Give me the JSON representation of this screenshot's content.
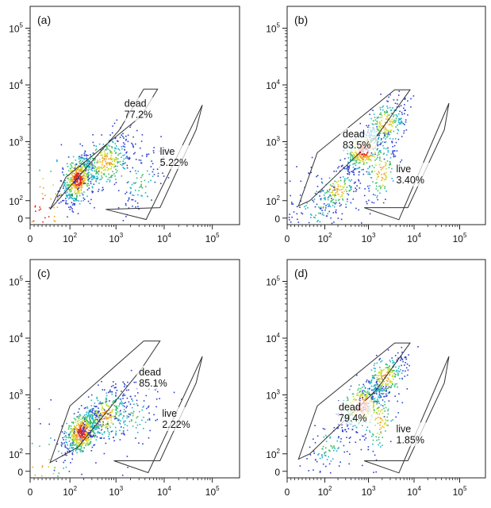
{
  "chart_data": [
    {
      "type": "scatter",
      "panel": "(a)",
      "title": "",
      "xlabel": "",
      "ylabel": "",
      "scale": "biexponential",
      "x_ticks": [
        "0",
        "10^2",
        "10^3",
        "10^4",
        "10^5"
      ],
      "y_ticks": [
        "0",
        "10^2",
        "10^3",
        "10^4",
        "10^5"
      ],
      "gates": [
        {
          "name": "dead",
          "percent": "77.2%",
          "polygon": [
            [
              50,
              50
            ],
            [
              90,
              250
            ],
            [
              3500,
              2700
            ],
            [
              8000,
              7800
            ],
            [
              4000,
              7800
            ],
            [
              1200,
              1600
            ]
          ]
        },
        {
          "name": "live",
          "percent": "5.22%",
          "polygon": [
            [
              600,
              50
            ],
            [
              4500,
              -50
            ],
            [
              75000,
              4200
            ],
            [
              55000,
              1600
            ],
            [
              9000,
              60
            ]
          ]
        }
      ],
      "populations": [
        {
          "x": 30,
          "y": 40,
          "sx": 0.5,
          "sy": 0.5,
          "n": 90,
          "density": "high"
        },
        {
          "x": 150,
          "y": 230,
          "sx": 0.18,
          "sy": 0.22,
          "n": 520,
          "density": "high"
        },
        {
          "x": 600,
          "y": 450,
          "sx": 0.3,
          "sy": 0.25,
          "n": 330,
          "density": "medium"
        },
        {
          "x": 3500,
          "y": 200,
          "sx": 0.28,
          "sy": 0.3,
          "n": 110,
          "density": "low"
        }
      ]
    },
    {
      "type": "scatter",
      "panel": "(b)",
      "title": "",
      "xlabel": "",
      "ylabel": "",
      "scale": "biexponential",
      "x_ticks": [
        "0",
        "10^2",
        "10^3",
        "10^4",
        "10^5"
      ],
      "y_ticks": [
        "0",
        "10^2",
        "10^3",
        "10^4",
        "10^5"
      ],
      "gates": [
        {
          "name": "dead",
          "percent": "83.5%",
          "polygon": [
            [
              30,
              70
            ],
            [
              60,
              100
            ],
            [
              1500,
              1200
            ],
            [
              9000,
              7600
            ],
            [
              4000,
              7600
            ],
            [
              80,
              650
            ]
          ]
        },
        {
          "name": "live",
          "percent": "3.40%",
          "polygon": [
            [
              800,
              60
            ],
            [
              5000,
              -60
            ],
            [
              70000,
              4500
            ],
            [
              55000,
              1600
            ],
            [
              8000,
              60
            ]
          ]
        }
      ],
      "populations": [
        {
          "x": 80,
          "y": 60,
          "sx": 0.35,
          "sy": 0.3,
          "n": 120,
          "density": "low"
        },
        {
          "x": 200,
          "y": 150,
          "sx": 0.25,
          "sy": 0.2,
          "n": 160,
          "density": "medium"
        },
        {
          "x": 800,
          "y": 700,
          "sx": 0.25,
          "sy": 0.18,
          "n": 320,
          "density": "high"
        },
        {
          "x": 2500,
          "y": 2000,
          "sx": 0.25,
          "sy": 0.2,
          "n": 260,
          "density": "medium"
        },
        {
          "x": 2000,
          "y": 300,
          "sx": 0.2,
          "sy": 0.3,
          "n": 130,
          "density": "medium"
        }
      ]
    },
    {
      "type": "scatter",
      "panel": "(c)",
      "title": "",
      "xlabel": "",
      "ylabel": "",
      "scale": "biexponential",
      "x_ticks": [
        "0",
        "10^2",
        "10^3",
        "10^4",
        "10^5"
      ],
      "y_ticks": [
        "0",
        "10^2",
        "10^3",
        "10^4",
        "10^5"
      ],
      "gates": [
        {
          "name": "dead",
          "percent": "85.1%",
          "polygon": [
            [
              50,
              50
            ],
            [
              150,
              130
            ],
            [
              3500,
              2700
            ],
            [
              9000,
              8200
            ],
            [
              4000,
              8200
            ],
            [
              100,
              650
            ]
          ]
        },
        {
          "name": "live",
          "percent": "2.22%",
          "polygon": [
            [
              900,
              60
            ],
            [
              5000,
              -50
            ],
            [
              75000,
              4500
            ],
            [
              55000,
              1600
            ],
            [
              9000,
              60
            ]
          ]
        }
      ],
      "populations": [
        {
          "x": 25,
          "y": 20,
          "sx": 0.4,
          "sy": 0.4,
          "n": 60,
          "density": "medium"
        },
        {
          "x": 180,
          "y": 230,
          "sx": 0.2,
          "sy": 0.2,
          "n": 560,
          "density": "high"
        },
        {
          "x": 600,
          "y": 450,
          "sx": 0.28,
          "sy": 0.25,
          "n": 340,
          "density": "medium"
        },
        {
          "x": 2500,
          "y": 400,
          "sx": 0.3,
          "sy": 0.3,
          "n": 90,
          "density": "low"
        }
      ]
    },
    {
      "type": "scatter",
      "panel": "(d)",
      "title": "",
      "xlabel": "",
      "ylabel": "",
      "scale": "biexponential",
      "x_ticks": [
        "0",
        "10^2",
        "10^3",
        "10^4",
        "10^5"
      ],
      "y_ticks": [
        "0",
        "10^2",
        "10^3",
        "10^4",
        "10^5"
      ],
      "gates": [
        {
          "name": "dead",
          "percent": "79.4%",
          "polygon": [
            [
              30,
              70
            ],
            [
              60,
              100
            ],
            [
              1500,
              1200
            ],
            [
              9000,
              7600
            ],
            [
              4000,
              7600
            ],
            [
              80,
              650
            ]
          ]
        },
        {
          "name": "live",
          "percent": "1.85%",
          "polygon": [
            [
              800,
              60
            ],
            [
              5000,
              -60
            ],
            [
              70000,
              4500
            ],
            [
              55000,
              1600
            ],
            [
              8000,
              60
            ]
          ]
        }
      ],
      "populations": [
        {
          "x": 120,
          "y": 130,
          "sx": 0.3,
          "sy": 0.25,
          "n": 90,
          "density": "low"
        },
        {
          "x": 700,
          "y": 650,
          "sx": 0.25,
          "sy": 0.2,
          "n": 330,
          "density": "high"
        },
        {
          "x": 2500,
          "y": 2000,
          "sx": 0.25,
          "sy": 0.2,
          "n": 280,
          "density": "medium"
        },
        {
          "x": 1800,
          "y": 350,
          "sx": 0.22,
          "sy": 0.3,
          "n": 120,
          "density": "medium"
        }
      ]
    }
  ]
}
